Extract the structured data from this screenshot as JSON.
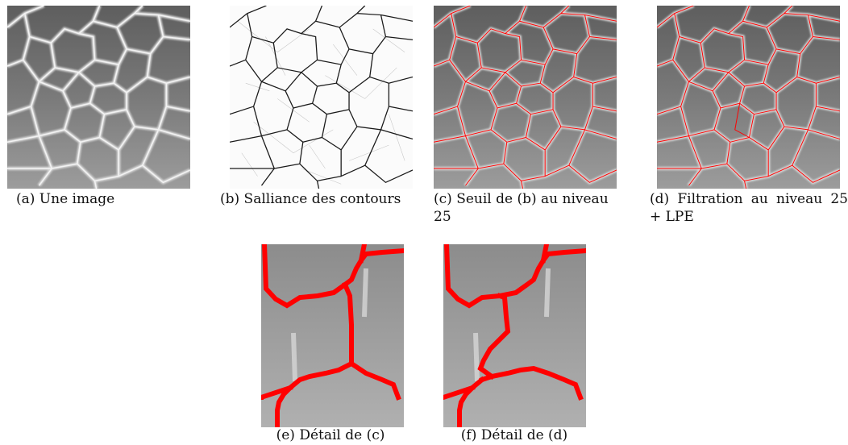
{
  "figure": {
    "panels": [
      {
        "id": "a",
        "caption": "(a) Une image"
      },
      {
        "id": "b",
        "caption": "(b) Salliance des contours"
      },
      {
        "id": "c",
        "caption": "(c) Seuil de (b) au niveau 25"
      },
      {
        "id": "d",
        "caption": "(d) Filtration au niveau 25 + LPE"
      },
      {
        "id": "e",
        "caption": "(e) Détail de (c)"
      },
      {
        "id": "f",
        "caption": "(f) Détail de (d)"
      }
    ],
    "colors": {
      "contour_red": "#ff0000",
      "cell_gray": "#8a8a8a",
      "boundary_white": "#e6e6e6",
      "saliency_black": "#1a1a1a"
    }
  }
}
